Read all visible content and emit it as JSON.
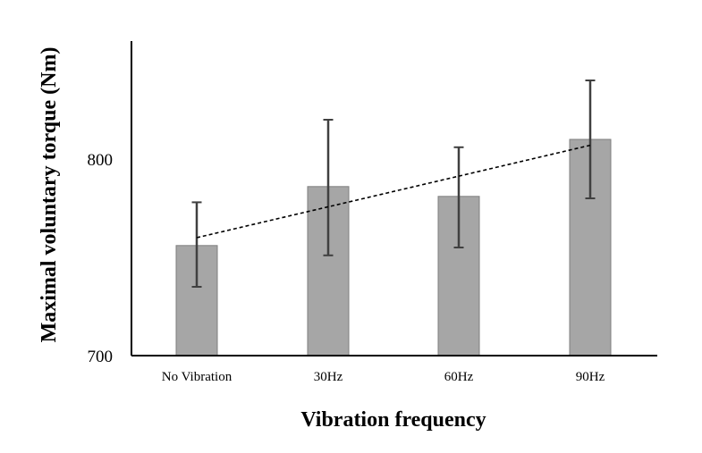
{
  "chart_data": {
    "type": "bar",
    "title": "",
    "xlabel": "Vibration frequency",
    "ylabel": "Maximal voluntary torque (Nm)",
    "categories": [
      "No Vibration",
      "30Hz",
      "60Hz",
      "90Hz"
    ],
    "values": [
      756,
      786,
      781,
      810
    ],
    "error_low": [
      735,
      751,
      755,
      780
    ],
    "error_high": [
      778,
      820,
      806,
      840
    ],
    "ylim": [
      700,
      860
    ],
    "yticks": [
      700,
      800
    ],
    "trendline": {
      "style": "dashed",
      "start": 760,
      "end": 807
    },
    "grid": false,
    "legend": "none",
    "colors": {
      "bar_fill": "#a6a6a6",
      "bar_stroke": "#7f7f7f",
      "error_bar": "#404040",
      "trendline": "#000000",
      "axis": "#000000"
    }
  }
}
